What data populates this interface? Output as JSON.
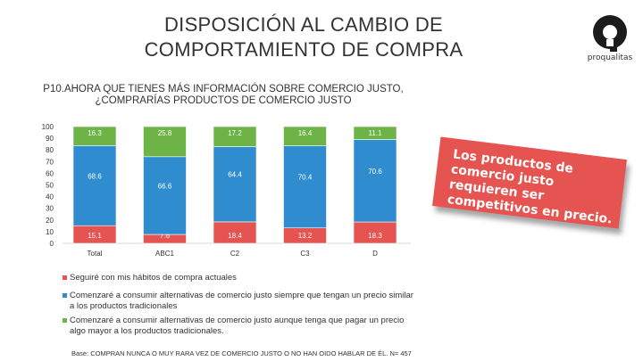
{
  "slide": {
    "title_line1": "DISPOSICIÓN AL CAMBIO DE",
    "title_line2": "COMPORTAMIENTO DE COMPRA",
    "logo_text": "proqualitas",
    "question_line1": "P10.AHORA QUE TIENES MÁS INFORMACIÓN SOBRE COMERCIO JUSTO,",
    "question_line2": "¿COMPRARÍAS PRODUCTOS DE COMERCIO JUSTO",
    "callout": "Los productos de comercio justo requieren ser competitivos en precio.",
    "base_note": "Base: COMPRAN NUNCA O MUY RARA VEZ DE COMERCIO JUSTO O NO HAN OIDO HABLAR DE ÉL. N= 457"
  },
  "legend": [
    {
      "label": "Seguiré con mis hábitos de compra actuales",
      "color": "#e55451"
    },
    {
      "label": "Comenzaré a consumir alternativas de comercio justo siempre que tengan un precio similar a los productos tradicionales",
      "color": "#2e8ccf"
    },
    {
      "label": "Comenzaré a consumir alternativas de comercio justo aunque tenga que pagar un precio algo mayor a los productos tradicionales.",
      "color": "#6db346"
    }
  ],
  "chart_data": {
    "type": "bar",
    "stacked": true,
    "categories": [
      "Total",
      "ABC1",
      "C2",
      "C3",
      "D"
    ],
    "ylim": [
      0,
      100
    ],
    "yticks": [
      0,
      10,
      20,
      30,
      40,
      50,
      60,
      70,
      80,
      90,
      100
    ],
    "grid": false,
    "series": [
      {
        "name": "Seguiré con mis hábitos de compra actuales",
        "color": "#e55451",
        "values": [
          15.1,
          7.6,
          18.4,
          13.2,
          18.3
        ]
      },
      {
        "name": "Comenzaré a consumir alternativas de comercio justo siempre que tengan un precio similar a los productos tradicionales",
        "color": "#2e8ccf",
        "values": [
          68.6,
          66.6,
          64.4,
          70.4,
          70.6
        ]
      },
      {
        "name": "Comenzaré a consumir alternativas de comercio justo aunque tenga que pagar un precio algo mayor a los productos tradicionales.",
        "color": "#6db346",
        "values": [
          16.3,
          25.8,
          17.2,
          16.4,
          11.1
        ]
      }
    ],
    "label_color": "#ffffff",
    "axis_label_color": "#333333"
  }
}
